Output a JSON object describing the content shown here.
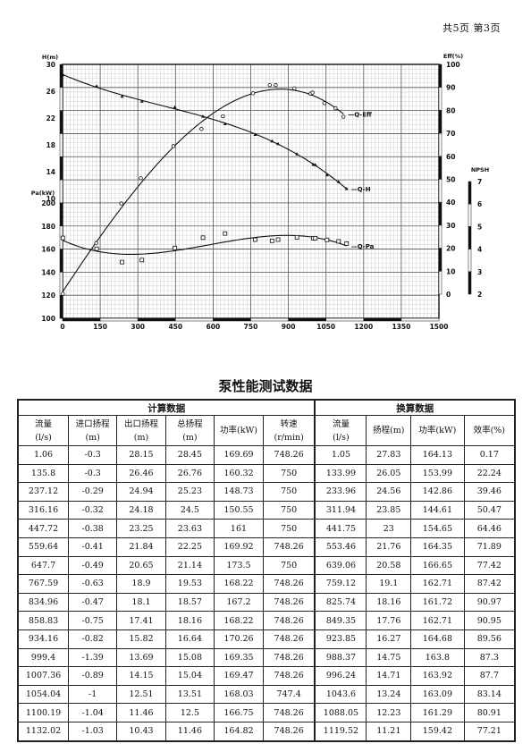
{
  "page_label": "共5页   第3页",
  "chart_data": {
    "type": "line",
    "xlabel": "",
    "x_ticks": [
      "0",
      "150",
      "300",
      "450",
      "600",
      "750",
      "900",
      "1050",
      "1200",
      "1350",
      "1500"
    ],
    "left_axis_H": {
      "label": "H(m)",
      "ticks": [
        "30",
        "26",
        "22",
        "18",
        "14",
        "10"
      ]
    },
    "left_axis_Pa": {
      "label": "Pa(kW)",
      "ticks": [
        "200",
        "180",
        "160",
        "140",
        "120",
        "100"
      ]
    },
    "right_axis_Eff": {
      "label": "Eff(%)",
      "ticks": [
        "100",
        "90",
        "80",
        "70",
        "60",
        "50",
        "40",
        "30",
        "20",
        "10",
        "0"
      ]
    },
    "right_axis_NPSH": {
      "label": "NPSH",
      "ticks": [
        "7",
        "6",
        "5",
        "4",
        "3",
        "2"
      ]
    },
    "series": [
      {
        "name": "Q-H",
        "x": [
          1.06,
          135.8,
          237.12,
          316.16,
          447.72,
          559.64,
          647.7,
          767.59,
          834.96,
          858.83,
          934.16,
          999.4,
          1007.36,
          1054.04,
          1100.19,
          1132.02
        ],
        "y": [
          28.45,
          26.76,
          25.23,
          24.5,
          23.63,
          22.25,
          21.14,
          19.53,
          18.57,
          18.16,
          16.64,
          15.08,
          15.04,
          13.51,
          12.5,
          11.46
        ]
      },
      {
        "name": "Q-Eff",
        "x": [
          1.05,
          133.99,
          233.96,
          311.94,
          441.75,
          553.46,
          639.06,
          759.12,
          825.74,
          849.35,
          923.85,
          988.37,
          996.24,
          1043.6,
          1088.05,
          1119.52
        ],
        "y": [
          0.17,
          22.24,
          39.46,
          50.47,
          64.46,
          71.89,
          77.42,
          87.42,
          90.97,
          90.95,
          89.56,
          87.3,
          87.7,
          83.14,
          80.91,
          77.21
        ]
      },
      {
        "name": "Q-Pa",
        "x": [
          1.06,
          135.8,
          237.12,
          316.16,
          447.72,
          559.64,
          647.7,
          767.59,
          834.96,
          858.83,
          934.16,
          999.4,
          1007.36,
          1054.04,
          1100.19,
          1132.02
        ],
        "y": [
          169.69,
          160.32,
          148.73,
          150.55,
          161,
          169.92,
          173.5,
          168.22,
          167.2,
          168.22,
          170.26,
          169.35,
          169.47,
          168.03,
          166.75,
          164.82
        ]
      }
    ]
  },
  "table": {
    "title": "泵性能测试数据",
    "group1": "计算数据",
    "group2": "换算数据",
    "headers": [
      "流量\n(l/s)",
      "进口扬程\n(m)",
      "出口扬程\n(m)",
      "总扬程\n(m)",
      "功率(kW)",
      "转速\n(r/min)",
      "流量\n(l/s)",
      "扬程(m)",
      "功率(kW)",
      "效率(%)"
    ],
    "rows": [
      [
        "1.06",
        "-0.3",
        "28.15",
        "28.45",
        "169.69",
        "748.26",
        "1.05",
        "27.83",
        "164.13",
        "0.17"
      ],
      [
        "135.8",
        "-0.3",
        "26.46",
        "26.76",
        "160.32",
        "750",
        "133.99",
        "26.05",
        "153.99",
        "22.24"
      ],
      [
        "237.12",
        "-0.29",
        "24.94",
        "25.23",
        "148.73",
        "750",
        "233.96",
        "24.56",
        "142.86",
        "39.46"
      ],
      [
        "316.16",
        "-0.32",
        "24.18",
        "24.5",
        "150.55",
        "750",
        "311.94",
        "23.85",
        "144.61",
        "50.47"
      ],
      [
        "447.72",
        "-0.38",
        "23.25",
        "23.63",
        "161",
        "750",
        "441.75",
        "23",
        "154.65",
        "64.46"
      ],
      [
        "559.64",
        "-0.41",
        "21.84",
        "22.25",
        "169.92",
        "748.26",
        "553.46",
        "21.76",
        "164.35",
        "71.89"
      ],
      [
        "647.7",
        "-0.49",
        "20.65",
        "21.14",
        "173.5",
        "750",
        "639.06",
        "20.58",
        "166.65",
        "77.42"
      ],
      [
        "767.59",
        "-0.63",
        "18.9",
        "19.53",
        "168.22",
        "748.26",
        "759.12",
        "19.1",
        "162.71",
        "87.42"
      ],
      [
        "834.96",
        "-0.47",
        "18.1",
        "18.57",
        "167.2",
        "748.26",
        "825.74",
        "18.16",
        "161.72",
        "90.97"
      ],
      [
        "858.83",
        "-0.75",
        "17.41",
        "18.16",
        "168.22",
        "748.26",
        "849.35",
        "17.76",
        "162.71",
        "90.95"
      ],
      [
        "934.16",
        "-0.82",
        "15.82",
        "16.64",
        "170.26",
        "748.26",
        "923.85",
        "16.27",
        "164.68",
        "89.56"
      ],
      [
        "999.4",
        "-1.39",
        "13.69",
        "15.08",
        "169.35",
        "748.26",
        "988.37",
        "14.75",
        "163.8",
        "87.3"
      ],
      [
        "1007.36",
        "-0.89",
        "14.15",
        "15.04",
        "169.47",
        "748.26",
        "996.24",
        "14.71",
        "163.92",
        "87.7"
      ],
      [
        "1054.04",
        "-1",
        "12.51",
        "13.51",
        "168.03",
        "747.4",
        "1043.6",
        "13.24",
        "163.09",
        "83.14"
      ],
      [
        "1100.19",
        "-1.04",
        "11.46",
        "12.5",
        "166.75",
        "748.26",
        "1088.05",
        "12.23",
        "161.29",
        "80.91"
      ],
      [
        "1132.02",
        "-1.03",
        "10.43",
        "11.46",
        "164.82",
        "748.26",
        "1119.52",
        "11.21",
        "159.42",
        "77.21"
      ]
    ]
  }
}
